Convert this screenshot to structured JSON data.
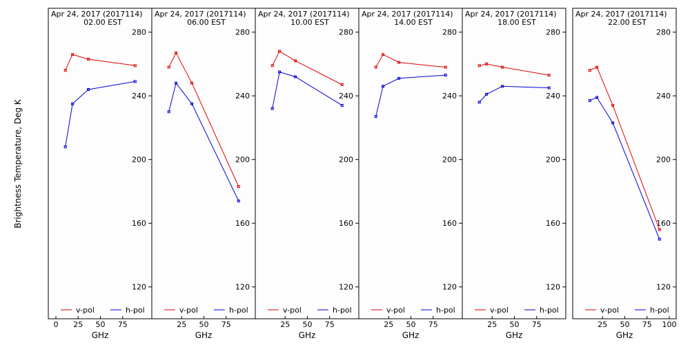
{
  "figure": {
    "ylabel": "Brightness Temperature, Deg K",
    "xlabel": "GHz",
    "colors": {
      "v_pol": "#e00000",
      "h_pol": "#0000d8",
      "frame": "#000000",
      "background": "#fdfdfd"
    }
  },
  "chart_data": [
    {
      "type": "line",
      "title": "Apr 24, 2017 (2017114)",
      "subtitle": "02.00 EST",
      "xlabel": "GHz",
      "ylabel": "Brightness Temperature, Deg K",
      "xlim": [
        0,
        100
      ],
      "ylim": [
        100,
        295
      ],
      "x_ticks": [
        "0",
        "25",
        "50",
        "75"
      ],
      "y_ticks": [
        "120",
        "160",
        "200",
        "240",
        "280"
      ],
      "grid": false,
      "legend": "bottom",
      "x": [
        10.65,
        18.7,
        36.5,
        89.0
      ],
      "series": [
        {
          "name": "v-pol",
          "color": "#e00000",
          "values": [
            256,
            266,
            263,
            259
          ]
        },
        {
          "name": "h-pol",
          "color": "#0000d8",
          "values": [
            208,
            235,
            244,
            249
          ]
        }
      ]
    },
    {
      "type": "line",
      "title": "Apr 24, 2017 (2017114)",
      "subtitle": "06.00 EST",
      "xlabel": "GHz",
      "ylabel": "Brightness Temperature, Deg K",
      "xlim": [
        0,
        100
      ],
      "ylim": [
        100,
        295
      ],
      "x_ticks": [
        "25",
        "50",
        "75"
      ],
      "y_ticks": [
        "120",
        "160",
        "200",
        "240",
        "280"
      ],
      "grid": false,
      "legend": "bottom",
      "x": [
        10.65,
        18.7,
        36.5,
        89.0
      ],
      "series": [
        {
          "name": "v-pol",
          "color": "#e00000",
          "values": [
            258,
            267,
            248,
            183
          ]
        },
        {
          "name": "h-pol",
          "color": "#0000d8",
          "values": [
            230,
            248,
            235,
            174
          ]
        }
      ]
    },
    {
      "type": "line",
      "title": "Apr 24, 2017 (2017114)",
      "subtitle": "10.00 EST",
      "xlabel": "GHz",
      "ylabel": "Brightness Temperature, Deg K",
      "xlim": [
        0,
        100
      ],
      "ylim": [
        100,
        295
      ],
      "x_ticks": [
        "25",
        "50",
        "75"
      ],
      "y_ticks": [
        "120",
        "160",
        "200",
        "240",
        "280"
      ],
      "grid": false,
      "legend": "bottom",
      "x": [
        10.65,
        18.7,
        36.5,
        89.0
      ],
      "series": [
        {
          "name": "v-pol",
          "color": "#e00000",
          "values": [
            259,
            268,
            262,
            247
          ]
        },
        {
          "name": "h-pol",
          "color": "#0000d8",
          "values": [
            232,
            255,
            252,
            234
          ]
        }
      ]
    },
    {
      "type": "line",
      "title": "Apr 24, 2017 (2017114)",
      "subtitle": "14.00 EST",
      "xlabel": "GHz",
      "ylabel": "Brightness Temperature, Deg K",
      "xlim": [
        0,
        100
      ],
      "ylim": [
        100,
        295
      ],
      "x_ticks": [
        "25",
        "50",
        "75"
      ],
      "y_ticks": [
        "120",
        "160",
        "200",
        "240",
        "280"
      ],
      "grid": false,
      "legend": "bottom",
      "x": [
        10.65,
        18.7,
        36.5,
        89.0
      ],
      "series": [
        {
          "name": "v-pol",
          "color": "#e00000",
          "values": [
            258,
            266,
            261,
            258
          ]
        },
        {
          "name": "h-pol",
          "color": "#0000d8",
          "values": [
            227,
            246,
            251,
            253
          ]
        }
      ]
    },
    {
      "type": "line",
      "title": "Apr 24, 2017 (2017114)",
      "subtitle": "18.00 EST",
      "xlabel": "GHz",
      "ylabel": "Brightness Temperature, Deg K",
      "xlim": [
        0,
        100
      ],
      "ylim": [
        100,
        295
      ],
      "x_ticks": [
        "25",
        "50",
        "75"
      ],
      "y_ticks": [
        "120",
        "160",
        "200",
        "240",
        "280"
      ],
      "grid": false,
      "legend": "bottom",
      "x": [
        10.65,
        18.7,
        36.5,
        89.0
      ],
      "series": [
        {
          "name": "v-pol",
          "color": "#e00000",
          "values": [
            259,
            260,
            258,
            253
          ]
        },
        {
          "name": "h-pol",
          "color": "#0000d8",
          "values": [
            236,
            241,
            246,
            245
          ]
        }
      ]
    },
    {
      "type": "line",
      "title": "Apr 24, 2017 (2017114)",
      "subtitle": "22.00 EST",
      "xlabel": "GHz",
      "ylabel": "Brightness Temperature, Deg K",
      "xlim": [
        0,
        100
      ],
      "ylim": [
        100,
        295
      ],
      "x_ticks": [
        "25",
        "50",
        "75",
        "100"
      ],
      "y_ticks": [
        "120",
        "160",
        "200",
        "240",
        "280"
      ],
      "grid": false,
      "legend": "bottom",
      "x": [
        10.65,
        18.7,
        36.5,
        89.0
      ],
      "series": [
        {
          "name": "v-pol",
          "color": "#e00000",
          "values": [
            256,
            258,
            234,
            156
          ]
        },
        {
          "name": "h-pol",
          "color": "#0000d8",
          "values": [
            237,
            239,
            223,
            150
          ]
        }
      ]
    }
  ]
}
